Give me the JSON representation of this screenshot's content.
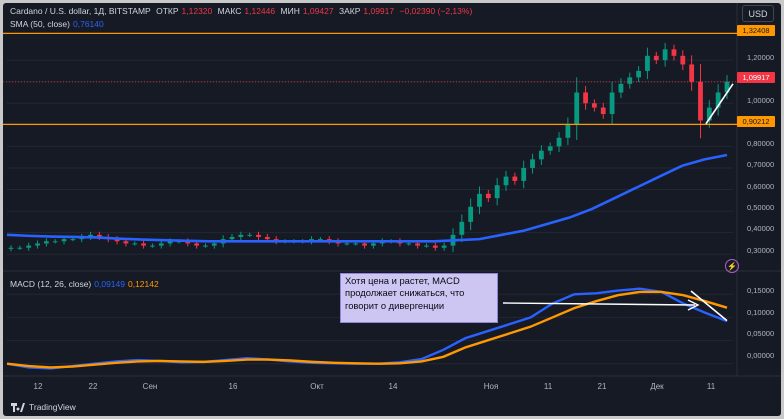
{
  "header": {
    "symbol": "Cardano / U.S. dollar, 1Д, BITSTAMP",
    "open_label": "ОТКР",
    "open_value": "1,12320",
    "high_label": "МАКС",
    "high_value": "1,12446",
    "low_label": "МИН",
    "low_value": "1,09427",
    "close_label": "ЗАКР",
    "close_value": "1,09917",
    "change_value": "−0,02390 (−2,13%)",
    "sma_label": "SMA (50, close)",
    "sma_value": "0,76140",
    "macd_label": "MACD (12, 26, close)",
    "macd_value": "0,09149",
    "signal_value": "0,12142"
  },
  "currency": "USD",
  "price_labels": {
    "resistance": "1,32408",
    "current": "1,09917",
    "support": "0,90212"
  },
  "annotation": "Хотя цена и растет, MACD продолжает снижаться, что говорит о дивергенции",
  "footer": {
    "brand": "TradingView"
  },
  "colors": {
    "background": "#161a25",
    "up": "#089981",
    "down": "#f23645",
    "sma": "#2962ff",
    "macd": "#2962ff",
    "signal": "#ff9800",
    "levels": "#ff9800"
  },
  "chart_data": [
    {
      "type": "candlestick",
      "y_ticks": [
        "1,20000",
        "1,10000",
        "1,00000",
        "0,90000",
        "0,80000",
        "0,70000",
        "0,60000",
        "0,50000",
        "0,40000",
        "0,30000"
      ],
      "ylim": [
        0.25,
        1.4
      ],
      "x_ticks": [
        "12",
        "22",
        "Сен",
        "16",
        "Окт",
        "14",
        "Ноя",
        "11",
        "21",
        "Дек",
        "11"
      ],
      "levels": [
        1.32408,
        0.90212
      ],
      "close_approx": [
        0.33,
        0.33,
        0.34,
        0.35,
        0.36,
        0.36,
        0.37,
        0.37,
        0.38,
        0.39,
        0.38,
        0.37,
        0.36,
        0.35,
        0.35,
        0.34,
        0.34,
        0.35,
        0.36,
        0.36,
        0.35,
        0.34,
        0.34,
        0.35,
        0.37,
        0.38,
        0.39,
        0.39,
        0.38,
        0.37,
        0.36,
        0.36,
        0.36,
        0.36,
        0.37,
        0.37,
        0.36,
        0.35,
        0.35,
        0.35,
        0.34,
        0.35,
        0.36,
        0.36,
        0.35,
        0.35,
        0.34,
        0.34,
        0.33,
        0.34,
        0.39,
        0.45,
        0.52,
        0.58,
        0.56,
        0.62,
        0.66,
        0.64,
        0.7,
        0.74,
        0.78,
        0.8,
        0.84,
        0.9,
        1.05,
        1.0,
        0.98,
        0.95,
        1.05,
        1.09,
        1.12,
        1.15,
        1.22,
        1.2,
        1.25,
        1.22,
        1.18,
        1.1,
        0.92,
        0.98,
        1.05,
        1.1
      ],
      "sma50_approx": [
        0.39,
        0.385,
        0.382,
        0.38,
        0.378,
        0.372,
        0.368,
        0.365,
        0.362,
        0.36,
        0.36,
        0.36,
        0.36,
        0.36,
        0.36,
        0.36,
        0.36,
        0.36,
        0.36,
        0.36,
        0.365,
        0.37,
        0.39,
        0.41,
        0.44,
        0.47,
        0.51,
        0.56,
        0.61,
        0.66,
        0.71,
        0.74,
        0.76
      ]
    },
    {
      "type": "line",
      "title": "MACD (12, 26, close)",
      "y_ticks": [
        "0,15000",
        "0,10000",
        "0,05000",
        "0,00000"
      ],
      "ylim": [
        -0.02,
        0.17
      ],
      "series": [
        {
          "name": "MACD",
          "values": [
            0.0,
            -0.008,
            -0.01,
            -0.005,
            0.0,
            0.005,
            0.008,
            0.006,
            0.003,
            0.004,
            0.008,
            0.012,
            0.009,
            0.005,
            0.002,
            0.001,
            0.0,
            0.0,
            0.003,
            0.01,
            0.03,
            0.055,
            0.07,
            0.085,
            0.1,
            0.13,
            0.15,
            0.152,
            0.158,
            0.162,
            0.155,
            0.13,
            0.11,
            0.092
          ]
        },
        {
          "name": "Signal",
          "values": [
            0.0,
            -0.005,
            -0.008,
            -0.006,
            -0.002,
            0.002,
            0.005,
            0.006,
            0.005,
            0.004,
            0.006,
            0.009,
            0.009,
            0.007,
            0.004,
            0.002,
            0.001,
            0.0,
            0.001,
            0.005,
            0.015,
            0.035,
            0.05,
            0.065,
            0.08,
            0.1,
            0.12,
            0.135,
            0.148,
            0.155,
            0.155,
            0.148,
            0.135,
            0.121
          ]
        }
      ]
    }
  ]
}
